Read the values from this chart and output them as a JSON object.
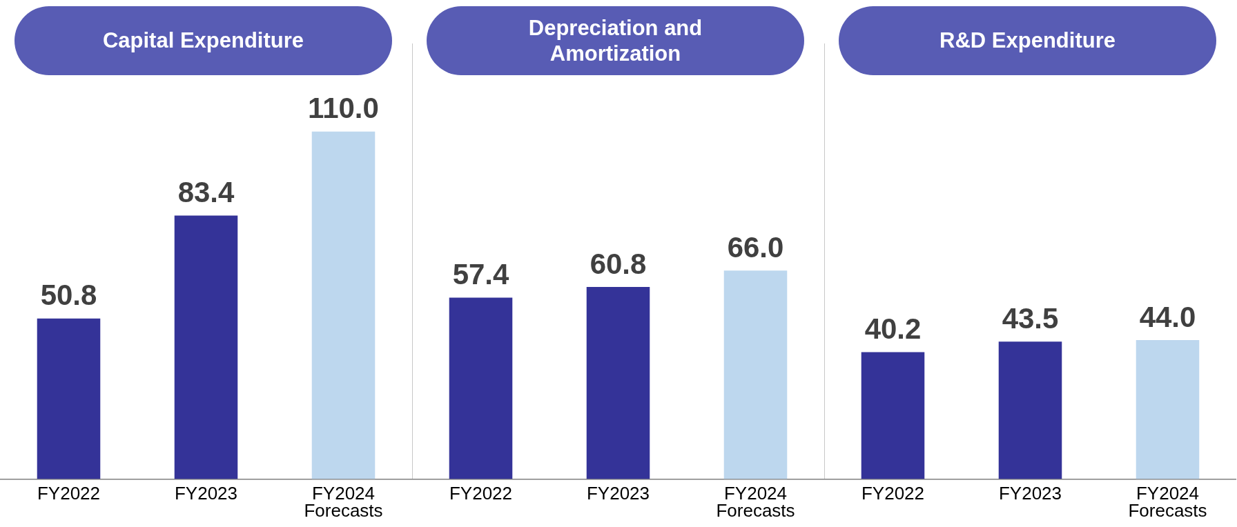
{
  "chart_data": [
    {
      "type": "bar",
      "title": "Capital Expenditure",
      "categories": [
        "FY2022",
        "FY2023",
        "FY2024\nForecasts"
      ],
      "values": [
        50.8,
        83.4,
        110.0
      ],
      "colors": [
        "#343398",
        "#343398",
        "#bdd7ee"
      ],
      "value_labels": [
        "50.8",
        "83.4",
        "110.0"
      ],
      "tick_labels": "x"
    },
    {
      "type": "bar",
      "title": "Depreciation and Amortization",
      "categories": [
        "FY2022",
        "FY2023",
        "FY2024\nForecasts"
      ],
      "values": [
        57.4,
        60.8,
        66.0
      ],
      "colors": [
        "#343398",
        "#343398",
        "#bdd7ee"
      ],
      "value_labels": [
        "57.4",
        "60.8",
        "66.0"
      ],
      "tick_labels": "x"
    },
    {
      "type": "bar",
      "title": "R&D Expenditure",
      "categories": [
        "FY2022",
        "FY2023",
        "FY2024\nForecasts"
      ],
      "values": [
        40.2,
        43.5,
        44.0
      ],
      "colors": [
        "#343398",
        "#343398",
        "#bdd7ee"
      ],
      "value_labels": [
        "40.2",
        "43.5",
        "44.0"
      ],
      "tick_labels": "x"
    }
  ]
}
